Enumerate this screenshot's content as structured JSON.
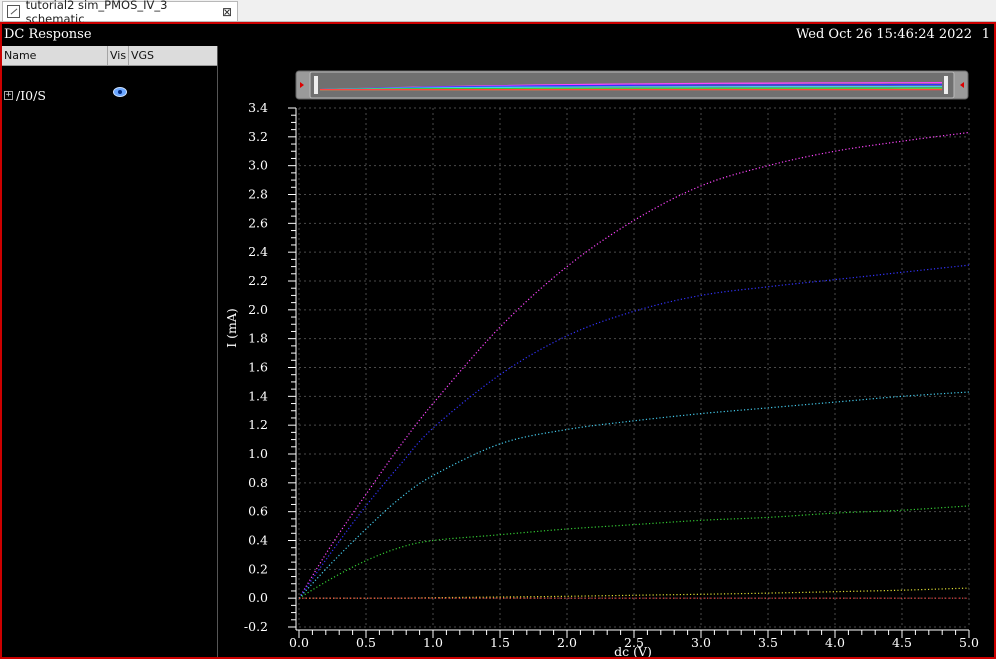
{
  "tab": {
    "title": "tutorial2 sim_PMOS_IV_3 schematic",
    "close_glyph": "⊠"
  },
  "window": {
    "title": "DC Response",
    "timestamp": "Wed Oct 26 15:46:24 2022",
    "index": "1"
  },
  "side_panel": {
    "columns": [
      "Name",
      "Vis",
      "VGS"
    ],
    "rows": [
      {
        "expander": "+",
        "name": "/I0/S",
        "icon": "eye-icon"
      }
    ]
  },
  "colors": {
    "frame_border": "#c00000",
    "grid": "#4a4a4a",
    "axis_text": "#ffffff"
  },
  "chart_data": {
    "type": "line",
    "xlabel": "dc (V)",
    "ylabel": "I (mA)",
    "xlim": [
      0.0,
      5.0
    ],
    "ylim": [
      -0.2,
      3.4
    ],
    "xticks": [
      "0.0",
      "0.5",
      "1.0",
      "1.5",
      "2.0",
      "2.5",
      "3.0",
      "3.5",
      "4.0",
      "4.5",
      "5.0"
    ],
    "yticks": [
      "-0.2",
      "0.0",
      "0.2",
      "0.4",
      "0.6",
      "0.8",
      "1.0",
      "1.2",
      "1.4",
      "1.6",
      "1.8",
      "2.0",
      "2.2",
      "2.4",
      "2.6",
      "2.8",
      "3.0",
      "3.2",
      "3.4"
    ],
    "grid": true,
    "x": [
      0.0,
      0.25,
      0.5,
      0.75,
      1.0,
      1.5,
      2.0,
      2.5,
      3.0,
      3.5,
      4.0,
      4.5,
      5.0
    ],
    "series": [
      {
        "color": "#ff44ff",
        "values": [
          0.0,
          0.38,
          0.72,
          1.05,
          1.35,
          1.88,
          2.3,
          2.62,
          2.86,
          3.0,
          3.1,
          3.17,
          3.23
        ]
      },
      {
        "color": "#3333ff",
        "values": [
          0.0,
          0.33,
          0.64,
          0.92,
          1.18,
          1.55,
          1.82,
          1.99,
          2.1,
          2.16,
          2.21,
          2.26,
          2.31
        ]
      },
      {
        "color": "#44ccee",
        "values": [
          0.0,
          0.25,
          0.48,
          0.69,
          0.85,
          1.07,
          1.17,
          1.23,
          1.28,
          1.32,
          1.36,
          1.4,
          1.43
        ]
      },
      {
        "color": "#33cc33",
        "values": [
          0.0,
          0.14,
          0.26,
          0.35,
          0.4,
          0.44,
          0.48,
          0.51,
          0.54,
          0.56,
          0.59,
          0.61,
          0.64
        ]
      },
      {
        "color": "#dddd33",
        "values": [
          0.0,
          0.0,
          0.0,
          0.0,
          0.003,
          0.008,
          0.013,
          0.02,
          0.027,
          0.035,
          0.045,
          0.055,
          0.07
        ]
      },
      {
        "color": "#ff4444",
        "values": [
          0.0,
          0.0,
          0.0,
          0.0,
          0.0,
          0.0,
          0.0,
          0.0,
          0.0,
          0.0,
          0.0,
          0.0,
          0.0
        ]
      }
    ]
  }
}
